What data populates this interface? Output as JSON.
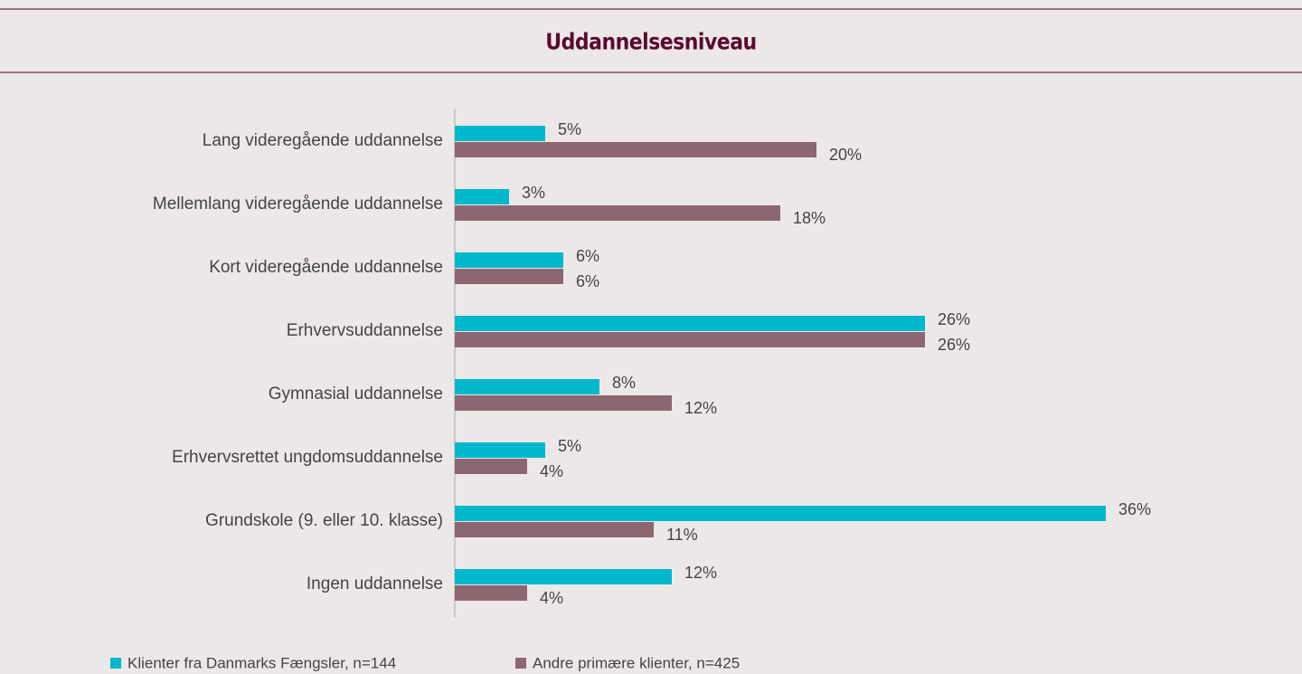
{
  "chart_data": {
    "type": "bar",
    "orientation": "horizontal",
    "title": "Uddannelsesniveau",
    "categories": [
      "Lang videregående uddannelse",
      "Mellemlang videregående uddannelse",
      "Kort videregående uddannelse",
      "Erhvervsuddannelse",
      "Gymnasial uddannelse",
      "Erhvervsrettet ungdomsuddannelse",
      "Grundskole (9. eller 10. klasse)",
      "Ingen uddannelse"
    ],
    "series": [
      {
        "name": "Klienter fra Danmarks Fængsler, n=144",
        "color": "#00b8cc",
        "values": [
          5,
          3,
          6,
          26,
          8,
          5,
          36,
          12
        ],
        "value_labels": [
          "5%",
          "3%",
          "6%",
          "26%",
          "8%",
          "5%",
          "36%",
          "12%"
        ]
      },
      {
        "name": "Andre primære klienter, n=425",
        "color": "#8c6670",
        "values": [
          20,
          18,
          6,
          26,
          12,
          4,
          11,
          4
        ],
        "value_labels": [
          "20%",
          "18%",
          "6%",
          "26%",
          "12%",
          "4%",
          "11%",
          "4%"
        ]
      }
    ],
    "xlim": [
      0,
      40
    ]
  }
}
